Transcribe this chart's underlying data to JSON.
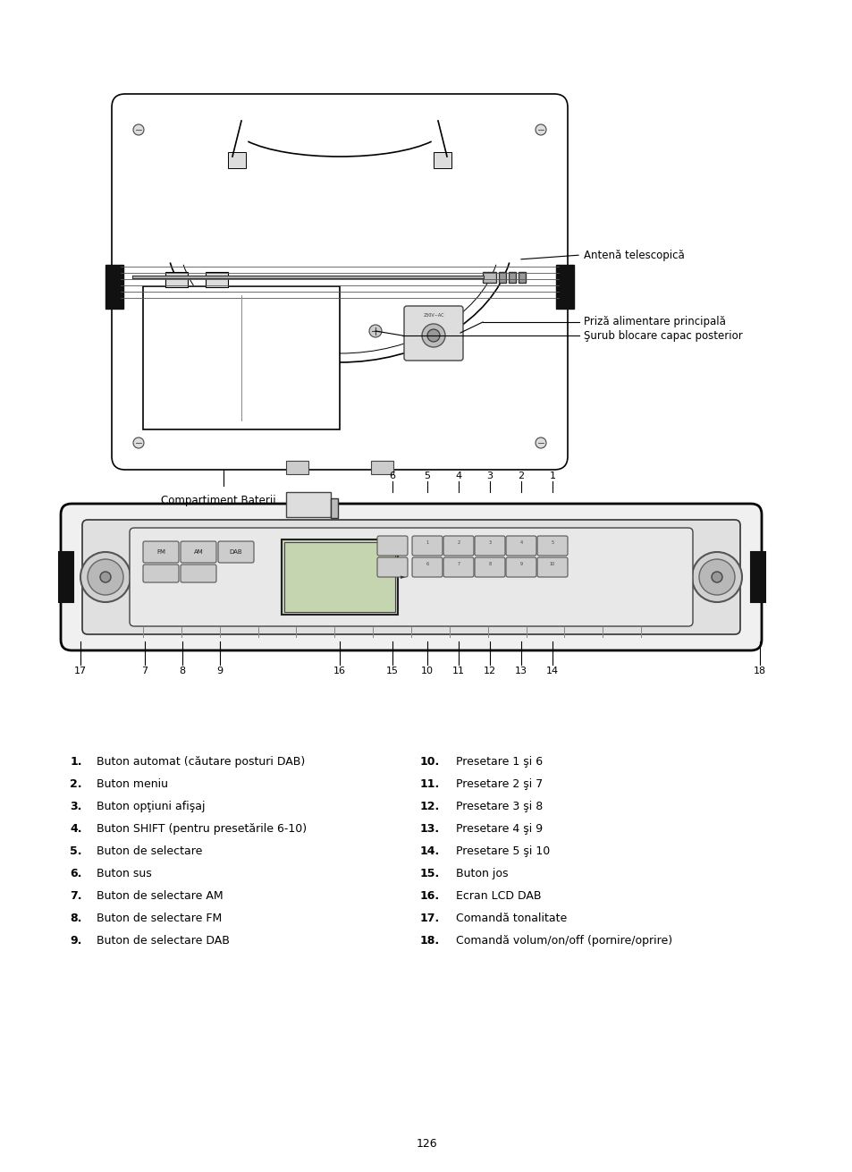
{
  "page_number": "126",
  "bg": "#ffffff",
  "lc": "#000000",
  "items_left": [
    {
      "num": "1.",
      "text": "Buton automat (căutare posturi DAB)"
    },
    {
      "num": "2.",
      "text": "Buton meniu"
    },
    {
      "num": "3.",
      "text": "Buton opţiuni afişaj"
    },
    {
      "num": "4.",
      "text": "Buton SHIFT (pentru presetările 6-10)"
    },
    {
      "num": "5.",
      "text": "Buton de selectare"
    },
    {
      "num": "6.",
      "text": "Buton sus"
    },
    {
      "num": "7.",
      "text": "Buton de selectare AM"
    },
    {
      "num": "8.",
      "text": "Buton de selectare FM"
    },
    {
      "num": "9.",
      "text": "Buton de selectare DAB"
    }
  ],
  "items_right": [
    {
      "num": "10.",
      "text": "Presetare 1 şi 6"
    },
    {
      "num": "11.",
      "text": "Presetare 2 şi 7"
    },
    {
      "num": "12.",
      "text": "Presetare 3 şi 8"
    },
    {
      "num": "13.",
      "text": "Presetare 4 şi 9"
    },
    {
      "num": "14.",
      "text": "Presetare 5 şi 10"
    },
    {
      "num": "15.",
      "text": "Buton jos"
    },
    {
      "num": "16.",
      "text": "Ecran LCD DAB"
    },
    {
      "num": "17.",
      "text": "Comandă tonalitate"
    },
    {
      "num": "18.",
      "text": "Comandă volum/on/off (pornire/oprire)"
    }
  ],
  "label_antenna": "Antenă telescopică",
  "label_screw": "Şurub blocare capac posterior",
  "label_socket": "Priză alimentare principală",
  "label_battery": "Compartiment Baterii",
  "top_nums": [
    "6",
    "5",
    "4",
    "3",
    "2",
    "1"
  ],
  "bot_nums_left": [
    "17",
    "7",
    "8",
    "9",
    "16"
  ],
  "bot_nums_right": [
    "15",
    "10",
    "11",
    "12",
    "13",
    "14",
    "18"
  ]
}
